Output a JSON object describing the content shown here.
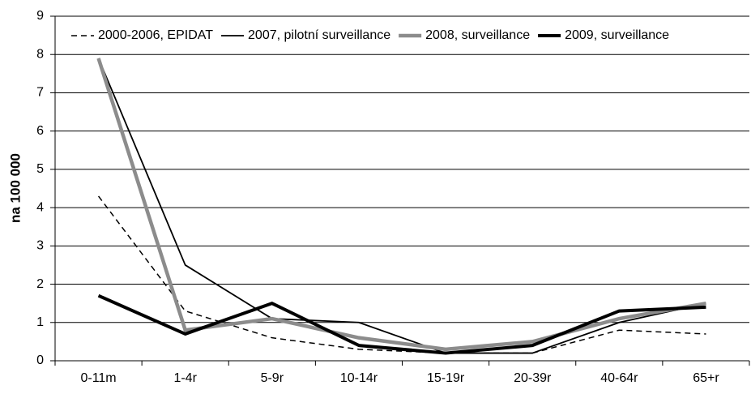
{
  "chart_data": {
    "type": "line",
    "y_label": "na 100 000",
    "categories": [
      "0-11m",
      "1-4r",
      "5-9r",
      "10-14r",
      "15-19r",
      "20-39r",
      "40-64r",
      "65+r"
    ],
    "series": [
      {
        "name": "2000-2006, EPIDAT",
        "color": "#000000",
        "width": 1.5,
        "dash": true,
        "values": [
          4.3,
          1.3,
          0.6,
          0.3,
          0.2,
          0.2,
          0.8,
          0.7
        ]
      },
      {
        "name": "2007, pilotní surveillance",
        "color": "#000000",
        "width": 1.8,
        "dash": false,
        "values": [
          7.9,
          2.5,
          1.1,
          1.0,
          0.2,
          0.2,
          1.0,
          1.5
        ]
      },
      {
        "name": "2008, surveillance",
        "color": "#8c8c8c",
        "width": 4.5,
        "dash": false,
        "values": [
          7.9,
          0.8,
          1.1,
          0.6,
          0.3,
          0.5,
          1.1,
          1.5
        ]
      },
      {
        "name": "2009, surveillance",
        "color": "#000000",
        "width": 4,
        "dash": false,
        "values": [
          1.7,
          0.7,
          1.5,
          0.4,
          0.2,
          0.4,
          1.3,
          1.4
        ]
      }
    ],
    "ylim": [
      0,
      9
    ],
    "yticks": [
      0,
      1,
      2,
      3,
      4,
      5,
      6,
      7,
      8,
      9
    ],
    "grid": true,
    "legend": "top"
  }
}
